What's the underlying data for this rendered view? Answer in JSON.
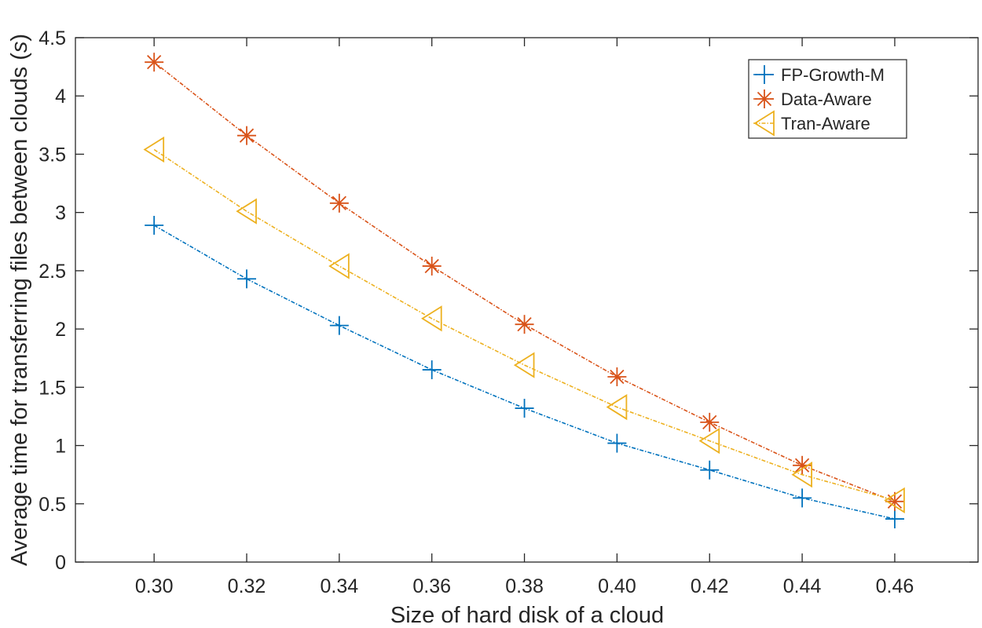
{
  "chart_data": {
    "type": "line",
    "title": "",
    "xlabel": "Size of hard disk of a cloud",
    "ylabel_main": "Average time for transferring files between clouds (",
    "ylabel_unit": "s",
    "ylabel_close": ")",
    "x": [
      0.3,
      0.32,
      0.34,
      0.36,
      0.38,
      0.4,
      0.42,
      0.44,
      0.46
    ],
    "x_tick_labels": [
      "0.30",
      "0.32",
      "0.34",
      "0.36",
      "0.38",
      "0.40",
      "0.42",
      "0.44",
      "0.46"
    ],
    "xlim": [
      0.283,
      0.478
    ],
    "ylim": [
      0,
      4.5
    ],
    "y_ticks": [
      0,
      0.5,
      1,
      1.5,
      2,
      2.5,
      3,
      3.5,
      4,
      4.5
    ],
    "y_tick_labels": [
      "0",
      "0.5",
      "1",
      "1.5",
      "2",
      "2.5",
      "3",
      "3.5",
      "4",
      "4.5"
    ],
    "grid": false,
    "legend_position": "top-right",
    "series": [
      {
        "name": "FP-Growth-M",
        "color": "#0072BD",
        "marker": "plus",
        "values": [
          2.89,
          2.43,
          2.03,
          1.65,
          1.32,
          1.02,
          0.79,
          0.55,
          0.37
        ]
      },
      {
        "name": "Data-Aware",
        "color": "#D95319",
        "marker": "asterisk",
        "values": [
          4.29,
          3.66,
          3.08,
          2.54,
          2.04,
          1.59,
          1.2,
          0.83,
          0.52
        ]
      },
      {
        "name": "Tran-Aware",
        "color": "#EDB120",
        "marker": "triangle-left",
        "values": [
          3.54,
          3.01,
          2.54,
          2.09,
          1.69,
          1.33,
          1.04,
          0.75,
          0.53
        ]
      }
    ]
  }
}
